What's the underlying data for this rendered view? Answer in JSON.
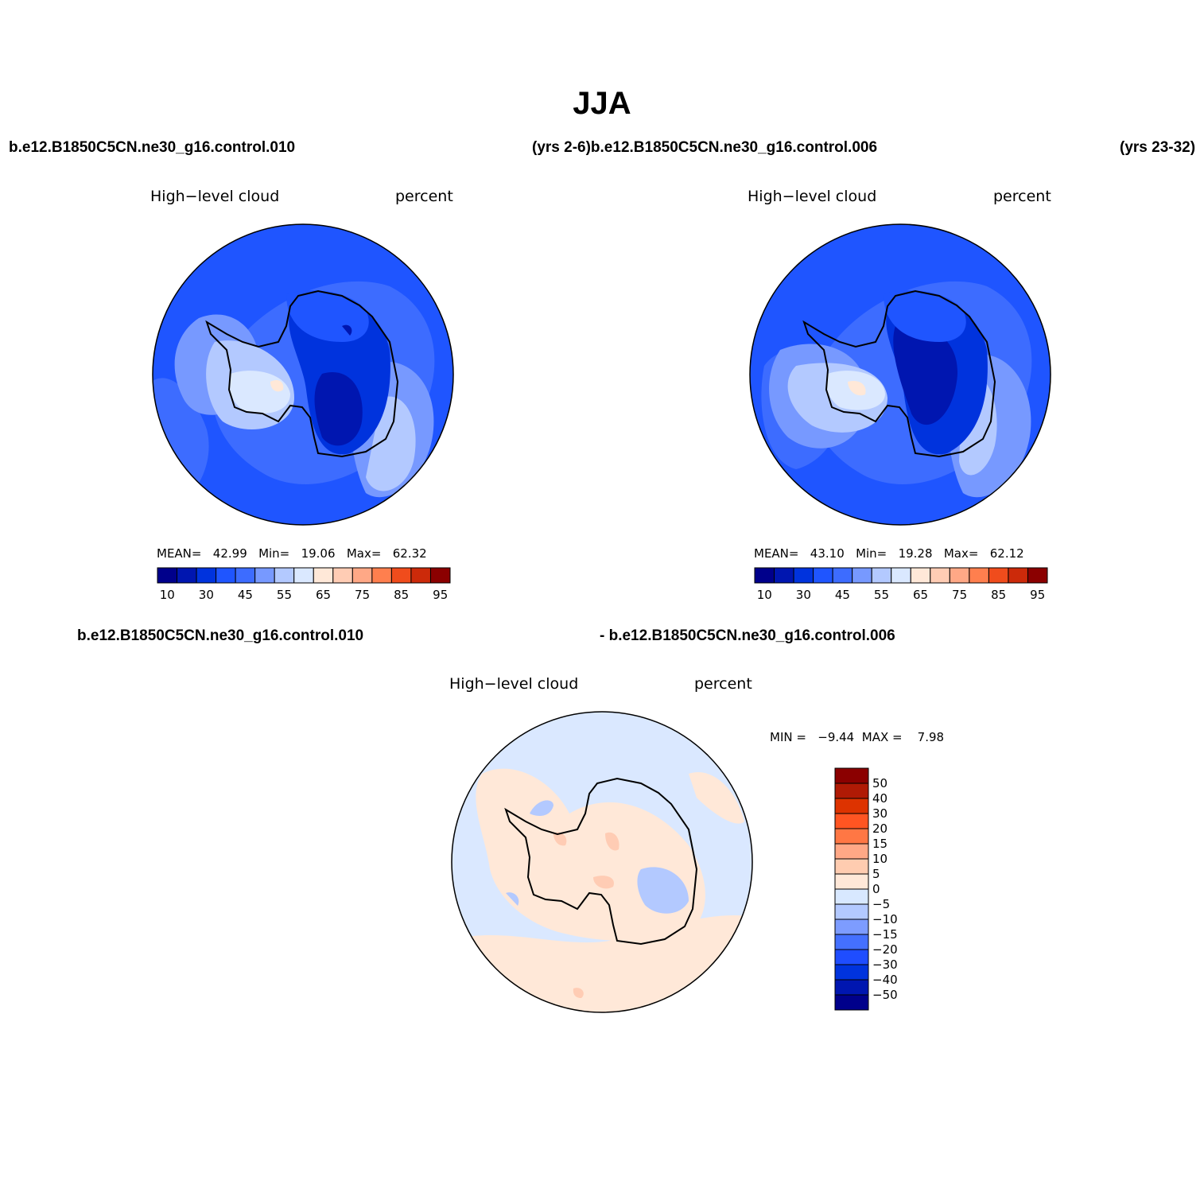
{
  "title": "JJA",
  "header": {
    "left_case": "b.e12.B1850C5CN.ne30_g16.control.010",
    "middle_case": "(yrs 2-6)b.e12.B1850C5CN.ne30_g16.control.006",
    "right_case": "(yrs 23-32)"
  },
  "diff_header": {
    "left": "b.e12.B1850C5CN.ne30_g16.control.010",
    "right": "- b.e12.B1850C5CN.ne30_g16.control.006"
  },
  "panels": [
    {
      "variable": "High−level cloud",
      "units": "percent",
      "stats": {
        "mean_label": "MEAN=",
        "mean": "42.99",
        "min_label": "Min=",
        "min": "19.06",
        "max_label": "Max=",
        "max": "62.32"
      }
    },
    {
      "variable": "High−level cloud",
      "units": "percent",
      "stats": {
        "mean_label": "MEAN=",
        "mean": "43.10",
        "min_label": "Min=",
        "min": "19.28",
        "max_label": "Max=",
        "max": "62.12"
      }
    }
  ],
  "diff_panel": {
    "variable": "High−level cloud",
    "units": "percent",
    "stats": {
      "min_label": "MIN =",
      "min": "−9.44",
      "max_label": "MAX =",
      "max": "7.98"
    }
  },
  "colorbar_main": {
    "tick_labels": [
      "10",
      "30",
      "45",
      "55",
      "65",
      "75",
      "85",
      "95"
    ],
    "colors": [
      "#00008b",
      "#0016b0",
      "#0033dd",
      "#1f55ff",
      "#3d6cff",
      "#7799ff",
      "#b3c9ff",
      "#dae8ff",
      "#ffe8d8",
      "#ffccb4",
      "#ffa886",
      "#ff7f4e",
      "#f04c1c",
      "#cc2a0a",
      "#8b0000"
    ]
  },
  "colorbar_diff": {
    "tick_labels": [
      "50",
      "40",
      "30",
      "20",
      "15",
      "10",
      "5",
      "0",
      "−5",
      "−10",
      "−15",
      "−20",
      "−30",
      "−40",
      "−50"
    ],
    "colors": [
      "#8b0000",
      "#b01a05",
      "#dd3300",
      "#ff5522",
      "#ff7744",
      "#ffa886",
      "#ffccb0",
      "#ffe8d8",
      "#d8e8ff",
      "#b3c9ff",
      "#7d9cff",
      "#4470ff",
      "#1f4dff",
      "#0033dd",
      "#0016b0",
      "#00008b"
    ]
  }
}
